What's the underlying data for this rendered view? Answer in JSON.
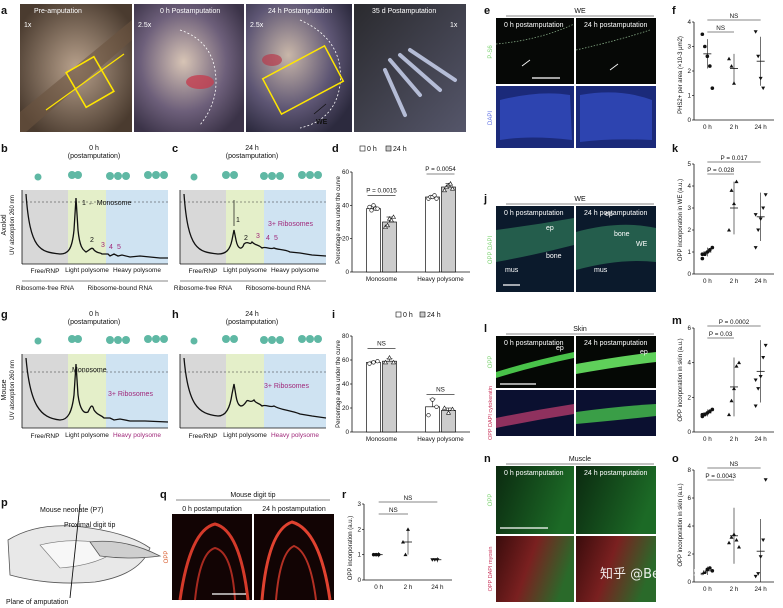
{
  "panels": {
    "a": {
      "letter": "a",
      "tiles": [
        {
          "title": "Pre-amputation",
          "mag": "1x"
        },
        {
          "title": "0 h Postamputation",
          "mag": "2.5x"
        },
        {
          "title": "24 h Postamputation",
          "mag": "2.5x",
          "marker": "WE"
        },
        {
          "title": "35 d Postamputation",
          "mag": "1x"
        }
      ]
    },
    "b": {
      "letter": "b",
      "header": [
        "0 h",
        "(postamputation)"
      ],
      "row_label": "Axolotl",
      "ylabel": "UV absorption 260 nm",
      "peak_label": "1 ← Monosome",
      "peak_numbers": [
        "1",
        "2",
        "3",
        "4",
        "5"
      ],
      "regions": [
        "Free/RNP",
        "Light polysome",
        "Heavy polysome"
      ],
      "bottom": [
        "Ribosome-free RNA",
        "Ribosome-bound RNA"
      ]
    },
    "c": {
      "letter": "c",
      "header": [
        "24 h",
        "(postamputation)"
      ],
      "annotation": "3+ Ribosomes",
      "peak_numbers": [
        "1",
        "2",
        "3",
        "4",
        "5"
      ],
      "regions": [
        "Free/RNP",
        "Light polysome",
        "Heavy polysome"
      ],
      "bottom": [
        "Ribosome-free RNA",
        "Ribosome-bound RNA"
      ]
    },
    "d": {
      "letter": "d",
      "legend": [
        "0 h",
        "24 h"
      ],
      "ylabel": "Percentage area under the curve",
      "categories": [
        "Monosome",
        "Heavy polysome"
      ],
      "pvalues": [
        "P = 0.0015",
        "P = 0.0054"
      ]
    },
    "e": {
      "letter": "e",
      "title": "WE",
      "columns": [
        "0 h postamputation",
        "24 h postamputation"
      ],
      "channels": [
        "P-S6",
        "DAPI"
      ]
    },
    "f": {
      "letter": "f",
      "ylabel": "PHS2+ per area (×10-3 μm2)",
      "categories": [
        "0 h",
        "2 h",
        "24 h"
      ],
      "sig": [
        "NS",
        "NS"
      ]
    },
    "g": {
      "letter": "g",
      "header": [
        "0 h",
        "(postamputation)"
      ],
      "row_label": "Mouse",
      "ylabel": "UV absorption 260 nm",
      "peak_label": "Monosome",
      "annotation": "3+ Ribosomes",
      "regions": [
        "Free/RNP",
        "Light polysome",
        "Heavy polysome"
      ]
    },
    "h": {
      "letter": "h",
      "header": [
        "24 h",
        "(postamputation)"
      ],
      "annotation": "3+ Ribosomes",
      "regions": [
        "Free/RNP",
        "Light polysome",
        "Heavy polysome"
      ]
    },
    "i": {
      "letter": "i",
      "legend": [
        "0 h",
        "24 h"
      ],
      "ylabel": "Percentage area under the curve",
      "categories": [
        "Monosome",
        "Heavy polysome"
      ],
      "sig": [
        "NS",
        "NS"
      ]
    },
    "j": {
      "letter": "j",
      "title": "WE",
      "columns": [
        "0 h postamputation",
        "24 h postamputation"
      ],
      "channel": "OPP DAPI",
      "marks": [
        "ep",
        "bone",
        "mus",
        "ep",
        "bone",
        "WE",
        "mus"
      ]
    },
    "k": {
      "letter": "k",
      "ylabel": "OPP incorporation in WE (a.u.)",
      "categories": [
        "0 h",
        "2 h",
        "24 h"
      ],
      "pvalues": [
        "P = 0.017",
        "P = 0.028"
      ]
    },
    "l": {
      "letter": "l",
      "title": "Skin",
      "columns": [
        "0 h postamputation",
        "24 h postamputation"
      ],
      "channels": [
        "OPP",
        "OPP DAPI cytokeratin"
      ],
      "marks": [
        "ep",
        "ep"
      ]
    },
    "m": {
      "letter": "m",
      "ylabel": "OPP incorporation in skin (a.u.)",
      "categories": [
        "0 h",
        "2 h",
        "24 h"
      ],
      "pvalues": [
        "P = 0.0002",
        "P = 0.03"
      ]
    },
    "n": {
      "letter": "n",
      "title": "Muscle",
      "columns": [
        "0 h postamputation",
        "24 h postamputation"
      ],
      "channels": [
        "OPP",
        "OPP DAPI myosin"
      ]
    },
    "o": {
      "letter": "o",
      "ylabel": "OPP incorporation in skin (a.u.)",
      "categories": [
        "0 h",
        "2 h",
        "24 h"
      ],
      "sig": [
        "NS"
      ],
      "pvalues": [
        "P = 0.0043"
      ]
    },
    "p": {
      "letter": "p",
      "labels": [
        "Mouse neonate (P7)",
        "Proximal digit tip",
        "Plane of amputation"
      ]
    },
    "q": {
      "letter": "q",
      "title": "Mouse digit tip",
      "columns": [
        "0 h postamputation",
        "24 h postamputation"
      ],
      "channel": "OPP"
    },
    "r": {
      "letter": "r",
      "ylabel": "OPP incorporation (a.u.)",
      "categories": [
        "0 h",
        "2 h",
        "24 h"
      ],
      "sig": [
        "NS",
        "NS"
      ]
    }
  },
  "watermark": "知乎 @Being科学",
  "chart_data": [
    {
      "id": "d",
      "type": "bar",
      "categories": [
        "Monosome",
        "Heavy polysome"
      ],
      "series": [
        {
          "name": "0 h",
          "values": [
            38,
            45
          ]
        },
        {
          "name": "24 h",
          "values": [
            30,
            51
          ]
        }
      ],
      "points": {
        "0 h": [
          [
            39,
            37,
            40,
            38,
            38
          ],
          [
            44,
            45,
            45,
            46,
            44
          ]
        ],
        "24 h": [
          [
            27,
            28,
            32,
            31,
            33
          ],
          [
            49,
            51,
            52,
            53,
            50
          ]
        ]
      },
      "ylabel": "Percentage area under the curve",
      "ylim": [
        0,
        60
      ],
      "yticks": [
        0,
        20,
        40,
        60
      ],
      "annotations": [
        "P = 0.0015",
        "P = 0.0054"
      ]
    },
    {
      "id": "f",
      "type": "scatter",
      "categories": [
        "0 h",
        "2 h",
        "24 h"
      ],
      "means": [
        2.7,
        2.1,
        2.4
      ],
      "errors": [
        0.6,
        0.6,
        1.0
      ],
      "points": [
        [
          3.5,
          3.0,
          2.6,
          2.2,
          1.3
        ],
        [
          2.5,
          2.2,
          1.5
        ],
        [
          3.6,
          2.6,
          1.7,
          1.3
        ]
      ],
      "ylabel": "PHS2+ per area (×10-3 μm2)",
      "ylim": [
        0,
        4
      ],
      "yticks": [
        0,
        1,
        2,
        3,
        4
      ],
      "annotations": [
        "NS",
        "NS"
      ]
    },
    {
      "id": "i",
      "type": "bar",
      "categories": [
        "Monosome",
        "Heavy polysome"
      ],
      "series": [
        {
          "name": "0 h",
          "values": [
            58,
            21
          ]
        },
        {
          "name": "24 h",
          "values": [
            59,
            18
          ]
        }
      ],
      "points": {
        "0 h": [
          [
            57,
            58,
            59
          ],
          [
            14,
            27,
            21
          ]
        ],
        "24 h": [
          [
            58,
            62,
            58
          ],
          [
            20,
            16,
            19
          ]
        ]
      },
      "ylabel": "Percentage area under the curve",
      "ylim": [
        0,
        80
      ],
      "yticks": [
        0,
        20,
        40,
        60,
        80
      ],
      "annotations": [
        "NS",
        "NS"
      ]
    },
    {
      "id": "k",
      "type": "scatter",
      "categories": [
        "0 h",
        "2 h",
        "24 h"
      ],
      "means": [
        1.0,
        3.0,
        2.6
      ],
      "errors": [
        0.2,
        1.2,
        1.1
      ],
      "points": [
        [
          0.7,
          0.9,
          1.0,
          1.1,
          1.2,
          0.9
        ],
        [
          2.0,
          3.8,
          3.2,
          4.2
        ],
        [
          1.2,
          2.0,
          2.5,
          3.0,
          3.6,
          2.7
        ]
      ],
      "ylabel": "OPP incorporation in WE (a.u.)",
      "ylim": [
        0,
        5
      ],
      "yticks": [
        0,
        1,
        2,
        3,
        4,
        5
      ],
      "annotations": [
        "P = 0.017",
        "P = 0.028"
      ]
    },
    {
      "id": "m",
      "type": "scatter",
      "categories": [
        "0 h",
        "2 h",
        "24 h"
      ],
      "means": [
        1.1,
        2.6,
        3.5
      ],
      "errors": [
        0.2,
        1.7,
        1.8
      ],
      "points": [
        [
          0.9,
          1.0,
          1.1,
          1.2,
          1.3,
          1.0
        ],
        [
          1.0,
          1.8,
          2.5,
          3.8,
          4.0
        ],
        [
          1.5,
          2.5,
          3.2,
          4.3,
          5.0,
          3.0
        ]
      ],
      "ylabel": "OPP incorporation in skin (a.u.)",
      "ylim": [
        0,
        6
      ],
      "yticks": [
        0,
        2,
        4,
        6
      ],
      "annotations": [
        "P = 0.0002",
        "P = 0.03"
      ]
    },
    {
      "id": "o",
      "type": "scatter",
      "categories": [
        "0 h",
        "2 h",
        "24 h"
      ],
      "means": [
        0.8,
        3.3,
        2.2
      ],
      "errors": [
        0.3,
        2.0,
        2.3
      ],
      "points": [
        [
          0.6,
          0.7,
          0.9,
          1.0,
          0.8
        ],
        [
          2.8,
          3.2,
          3.4,
          3.0,
          2.5
        ],
        [
          0.4,
          0.6,
          1.8,
          3.0,
          7.3
        ]
      ],
      "ylabel": "OPP incorporation in skin (a.u.)",
      "ylim": [
        0,
        8
      ],
      "yticks": [
        0,
        2,
        4,
        6,
        8
      ],
      "annotations": [
        "NS",
        "P = 0.0043"
      ]
    },
    {
      "id": "r",
      "type": "scatter",
      "categories": [
        "0 h",
        "2 h",
        "24 h"
      ],
      "means": [
        1.0,
        1.5,
        0.8
      ],
      "errors": [
        0.1,
        0.5,
        0.1
      ],
      "points": [
        [
          1.0,
          1.0,
          1.0
        ],
        [
          1.5,
          1.0,
          2.0
        ],
        [
          0.8,
          0.8,
          0.8
        ]
      ],
      "ylabel": "OPP incorporation (a.u.)",
      "ylim": [
        0,
        3
      ],
      "yticks": [
        0,
        1,
        2,
        3
      ],
      "annotations": [
        "NS",
        "NS"
      ]
    }
  ]
}
